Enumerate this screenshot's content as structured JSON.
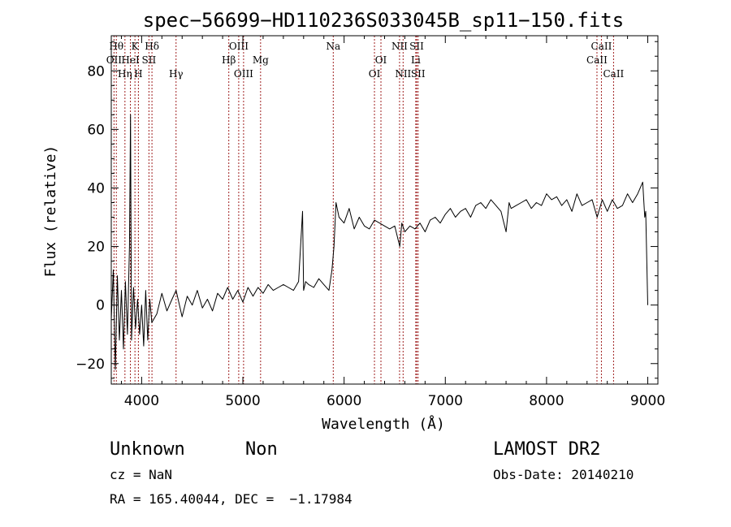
{
  "chart_data": {
    "type": "line",
    "title": "spec−56699−HD110236S033045B_sp11−150.fits",
    "xlabel": "Wavelength (Å)",
    "ylabel": "Flux (relative)",
    "xlim": [
      3700,
      9100
    ],
    "ylim": [
      -27,
      92
    ],
    "xticks": [
      4000,
      5000,
      6000,
      7000,
      8000,
      9000
    ],
    "xtick_labels": [
      "4000",
      "5000",
      "6000",
      "7000",
      "8000",
      "9000"
    ],
    "yticks": [
      -20,
      0,
      20,
      40,
      60,
      80
    ],
    "ytick_labels": [
      "−20",
      "0",
      "20",
      "40",
      "60",
      "80"
    ],
    "spectral_lines": [
      {
        "label": "Hθ",
        "wavelength": 3750,
        "row": 0
      },
      {
        "label": "K",
        "wavelength": 3934,
        "row": 0
      },
      {
        "label": "Hδ",
        "wavelength": 4102,
        "row": 0
      },
      {
        "label": "OIII",
        "wavelength": 4959,
        "row": 0
      },
      {
        "label": "Na",
        "wavelength": 5893,
        "row": 0
      },
      {
        "label": "NII",
        "wavelength": 6548,
        "row": 0
      },
      {
        "label": "SII",
        "wavelength": 6717,
        "row": 0
      },
      {
        "label": "CaII",
        "wavelength": 8542,
        "row": 0
      },
      {
        "label": "OII",
        "wavelength": 3727,
        "row": 1
      },
      {
        "label": "HeI",
        "wavelength": 3889,
        "row": 1
      },
      {
        "label": "SII",
        "wavelength": 4072,
        "row": 1
      },
      {
        "label": "Hβ",
        "wavelength": 4861,
        "row": 1
      },
      {
        "label": "Mg",
        "wavelength": 5175,
        "row": 1
      },
      {
        "label": "OI",
        "wavelength": 6364,
        "row": 1
      },
      {
        "label": "Li",
        "wavelength": 6708,
        "row": 1
      },
      {
        "label": "CaII",
        "wavelength": 8498,
        "row": 1
      },
      {
        "label": "Hη",
        "wavelength": 3835,
        "row": 2
      },
      {
        "label": "H",
        "wavelength": 3968,
        "row": 2
      },
      {
        "label": "Hγ",
        "wavelength": 4340,
        "row": 2
      },
      {
        "label": "OIII",
        "wavelength": 5007,
        "row": 2
      },
      {
        "label": "OI",
        "wavelength": 6300,
        "row": 2
      },
      {
        "label": "NII",
        "wavelength": 6583,
        "row": 2
      },
      {
        "label": "SII",
        "wavelength": 6731,
        "row": 2
      },
      {
        "label": "CaII",
        "wavelength": 8662,
        "row": 2
      }
    ],
    "series": [
      {
        "x": [
          3700,
          3720,
          3740,
          3760,
          3780,
          3800,
          3820,
          3840,
          3860,
          3880,
          3890,
          3900,
          3920,
          3940,
          3960,
          3980,
          4000,
          4020,
          4040,
          4060,
          4080,
          4100,
          4150,
          4200,
          4250,
          4300,
          4340,
          4400,
          4450,
          4500,
          4550,
          4600,
          4650,
          4700,
          4750,
          4800,
          4850,
          4900,
          4950,
          5000,
          5050,
          5100,
          5150,
          5200,
          5250,
          5300,
          5350,
          5400,
          5450,
          5500,
          5550,
          5590,
          5600,
          5620,
          5650,
          5700,
          5750,
          5800,
          5850,
          5880,
          5900,
          5920,
          5950,
          6000,
          6050,
          6100,
          6150,
          6200,
          6250,
          6300,
          6350,
          6400,
          6450,
          6500,
          6550,
          6570,
          6600,
          6650,
          6700,
          6750,
          6800,
          6850,
          6900,
          6950,
          7000,
          7050,
          7100,
          7150,
          7200,
          7250,
          7300,
          7350,
          7400,
          7450,
          7500,
          7550,
          7600,
          7630,
          7650,
          7700,
          7750,
          7800,
          7850,
          7900,
          7950,
          8000,
          8050,
          8100,
          8150,
          8200,
          8250,
          8300,
          8350,
          8400,
          8450,
          8500,
          8550,
          8600,
          8650,
          8700,
          8750,
          8800,
          8850,
          8900,
          8950,
          8970,
          8980,
          9000
        ],
        "y": [
          -5,
          12,
          -22,
          10,
          -12,
          5,
          -15,
          8,
          -10,
          20,
          65,
          -12,
          6,
          -8,
          2,
          -10,
          0,
          -14,
          5,
          -12,
          2,
          -6,
          -3,
          4,
          -2,
          2,
          5,
          -4,
          3,
          0,
          5,
          -1,
          2,
          -2,
          4,
          2,
          6,
          2,
          5,
          1,
          6,
          3,
          6,
          4,
          7,
          5,
          6,
          7,
          6,
          5,
          8,
          32,
          5,
          8,
          7,
          6,
          9,
          7,
          5,
          12,
          20,
          35,
          30,
          28,
          33,
          26,
          30,
          27,
          26,
          29,
          28,
          27,
          26,
          27,
          20,
          28,
          25,
          27,
          26,
          28,
          25,
          29,
          30,
          28,
          31,
          33,
          30,
          32,
          33,
          30,
          34,
          35,
          33,
          36,
          34,
          32,
          25,
          35,
          33,
          34,
          35,
          36,
          33,
          35,
          34,
          38,
          36,
          37,
          34,
          36,
          32,
          38,
          34,
          35,
          36,
          30,
          36,
          32,
          36,
          33,
          34,
          38,
          35,
          38,
          42,
          30,
          32,
          0
        ]
      }
    ]
  },
  "footer": {
    "object_name": "Unknown",
    "object_class": "Non",
    "survey": "LAMOST DR2",
    "redshift": "cz = NaN",
    "obs_date": "Obs-Date: 20140210",
    "coords": "RA = 165.40044, DEC =  −1.17984"
  }
}
